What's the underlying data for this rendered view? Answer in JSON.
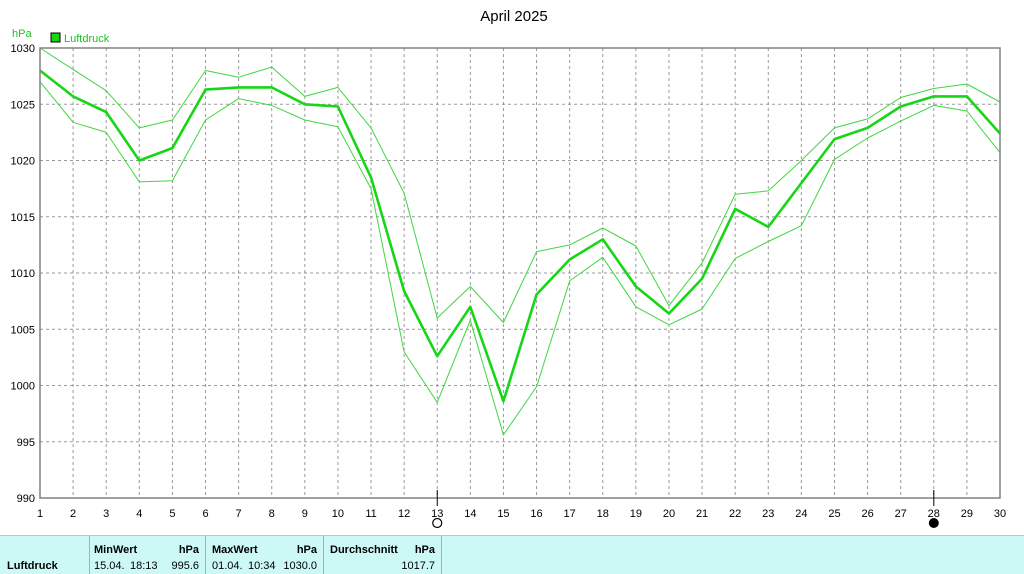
{
  "chart_data": {
    "type": "line",
    "title": "April 2025",
    "ylabel": "hPa",
    "ylim": [
      990,
      1030
    ],
    "yticks": [
      990,
      995,
      1000,
      1005,
      1010,
      1015,
      1020,
      1025,
      1030
    ],
    "x": [
      1,
      2,
      3,
      4,
      5,
      6,
      7,
      8,
      9,
      10,
      11,
      12,
      13,
      14,
      15,
      16,
      17,
      18,
      19,
      20,
      21,
      22,
      23,
      24,
      25,
      26,
      27,
      28,
      29,
      30
    ],
    "grid": true,
    "legend": "top-left",
    "series": [
      {
        "name": "Luftdruck",
        "role": "mean",
        "color": "#16d616",
        "values": [
          1028.0,
          1025.7,
          1024.3,
          1020.0,
          1021.1,
          1026.3,
          1026.5,
          1026.5,
          1025.0,
          1024.8,
          1018.5,
          1008.4,
          1002.6,
          1007.0,
          998.6,
          1008.1,
          1011.2,
          1013.0,
          1008.8,
          1006.4,
          1009.5,
          1015.7,
          1014.1,
          1018.0,
          1021.9,
          1022.9,
          1024.8,
          1025.7,
          1025.7,
          1022.4
        ]
      },
      {
        "role": "max",
        "color": "#3fd63f",
        "values": [
          1030.0,
          1028.1,
          1026.2,
          1022.9,
          1023.6,
          1028.0,
          1027.4,
          1028.3,
          1025.7,
          1026.5,
          1022.9,
          1017.1,
          1006.0,
          1008.8,
          1005.6,
          1011.9,
          1012.5,
          1014.0,
          1012.4,
          1007.1,
          1010.9,
          1017.0,
          1017.3,
          1020.0,
          1022.9,
          1023.7,
          1025.6,
          1026.4,
          1026.8,
          1025.2
        ]
      },
      {
        "role": "min",
        "color": "#3fd63f",
        "values": [
          1027.0,
          1023.4,
          1022.5,
          1018.1,
          1018.2,
          1023.6,
          1025.5,
          1024.9,
          1023.6,
          1023.0,
          1017.5,
          1003.0,
          998.5,
          1005.8,
          995.6,
          999.9,
          1009.3,
          1011.4,
          1007.0,
          1005.4,
          1006.8,
          1011.3,
          1012.8,
          1014.2,
          1020.1,
          1022.0,
          1023.5,
          1024.9,
          1024.4,
          1020.7
        ]
      }
    ],
    "moon_markers": [
      {
        "x": 13,
        "phase": "full-moon"
      },
      {
        "x": 28,
        "phase": "new-moon"
      }
    ]
  },
  "stats": {
    "row_label": "Luftdruck",
    "min": {
      "label": "MinWert",
      "unit": "hPa",
      "date": "15.04.",
      "time": "18:13",
      "value": "995.6"
    },
    "max": {
      "label": "MaxWert",
      "unit": "hPa",
      "date": "01.04.",
      "time": "10:34",
      "value": "1030.0"
    },
    "avg": {
      "label": "Durchschnitt",
      "unit": "hPa",
      "value": "1017.7"
    }
  }
}
